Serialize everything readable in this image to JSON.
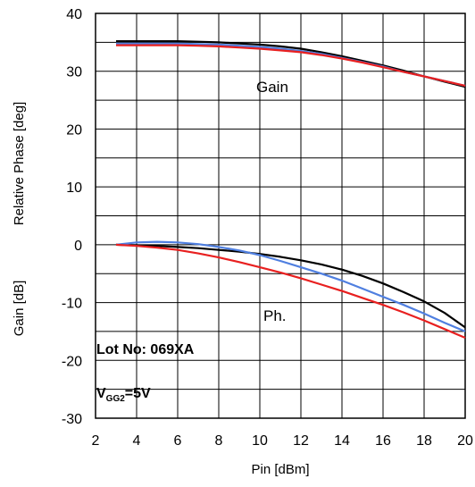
{
  "chart_data": {
    "type": "line",
    "xlabel": "Pin [dBm]",
    "ylabel": "Relative Phase [deg]",
    "ylabel2": "Gain [dB]",
    "xlim": [
      2,
      20
    ],
    "ylim": [
      -30,
      40
    ],
    "xticks": [
      2,
      4,
      6,
      8,
      10,
      12,
      14,
      16,
      18,
      20
    ],
    "yticks": [
      40,
      30,
      20,
      10,
      0,
      -10,
      -20,
      -30
    ],
    "ytick_labels": [
      "40",
      "30",
      "20",
      "10",
      "0",
      "-10",
      "-20",
      "-30"
    ],
    "grid": true,
    "annotations": {
      "gain": "Gain",
      "phase": "Ph.",
      "lot": "Lot No: 069XA",
      "vgg_main": "V",
      "vgg_sub": "GG2",
      "vgg_value": "=5V"
    },
    "series": [
      {
        "group": "gain",
        "color": "#000000",
        "x": [
          3,
          4,
          5,
          6,
          7,
          8,
          9,
          10,
          11,
          12,
          13,
          14,
          15,
          16,
          17,
          18,
          19,
          20
        ],
        "y": [
          35.2,
          35.2,
          35.2,
          35.2,
          35.1,
          35.0,
          34.8,
          34.6,
          34.3,
          33.9,
          33.3,
          32.6,
          31.8,
          31.0,
          30.1,
          29.1,
          28.2,
          27.3
        ]
      },
      {
        "group": "gain",
        "color": "#4f7fe0",
        "x": [
          3,
          4,
          5,
          6,
          7,
          8,
          9,
          10,
          11,
          12,
          13,
          14,
          15,
          16,
          17,
          18,
          19,
          20
        ],
        "y": [
          34.8,
          34.8,
          34.8,
          34.8,
          34.7,
          34.6,
          34.4,
          34.2,
          33.9,
          33.5,
          33.0,
          32.3,
          31.6,
          30.8,
          29.9,
          29.1,
          28.3,
          27.5
        ]
      },
      {
        "group": "gain",
        "color": "#e82020",
        "x": [
          3,
          4,
          5,
          6,
          7,
          8,
          9,
          10,
          11,
          12,
          13,
          14,
          15,
          16,
          17,
          18,
          19,
          20
        ],
        "y": [
          34.5,
          34.5,
          34.5,
          34.5,
          34.4,
          34.3,
          34.1,
          33.9,
          33.6,
          33.3,
          32.8,
          32.2,
          31.5,
          30.7,
          29.9,
          29.1,
          28.3,
          27.5
        ]
      },
      {
        "group": "phase",
        "color": "#000000",
        "x": [
          3,
          4,
          5,
          6,
          7,
          8,
          9,
          10,
          11,
          12,
          13,
          14,
          15,
          16,
          17,
          18,
          19,
          20
        ],
        "y": [
          0,
          -0.1,
          -0.2,
          -0.4,
          -0.6,
          -0.9,
          -1.2,
          -1.6,
          -2.1,
          -2.7,
          -3.4,
          -4.3,
          -5.4,
          -6.7,
          -8.2,
          -9.8,
          -11.8,
          -14.3
        ]
      },
      {
        "group": "phase",
        "color": "#4f7fe0",
        "x": [
          3,
          4,
          5,
          6,
          7,
          8,
          9,
          10,
          11,
          12,
          13,
          14,
          15,
          16,
          17,
          18,
          19,
          20
        ],
        "y": [
          0,
          0.4,
          0.5,
          0.4,
          0.1,
          -0.4,
          -1.0,
          -1.8,
          -2.8,
          -3.9,
          -5.0,
          -6.2,
          -7.6,
          -9.0,
          -10.4,
          -11.9,
          -13.5,
          -15.0
        ]
      },
      {
        "group": "phase",
        "color": "#e82020",
        "x": [
          3,
          4,
          5,
          6,
          7,
          8,
          9,
          10,
          11,
          12,
          13,
          14,
          15,
          16,
          17,
          18,
          19,
          20
        ],
        "y": [
          0,
          -0.2,
          -0.5,
          -0.9,
          -1.5,
          -2.2,
          -3.0,
          -3.9,
          -4.8,
          -5.8,
          -6.9,
          -8.0,
          -9.2,
          -10.4,
          -11.7,
          -13.1,
          -14.6,
          -16.1
        ]
      }
    ]
  }
}
